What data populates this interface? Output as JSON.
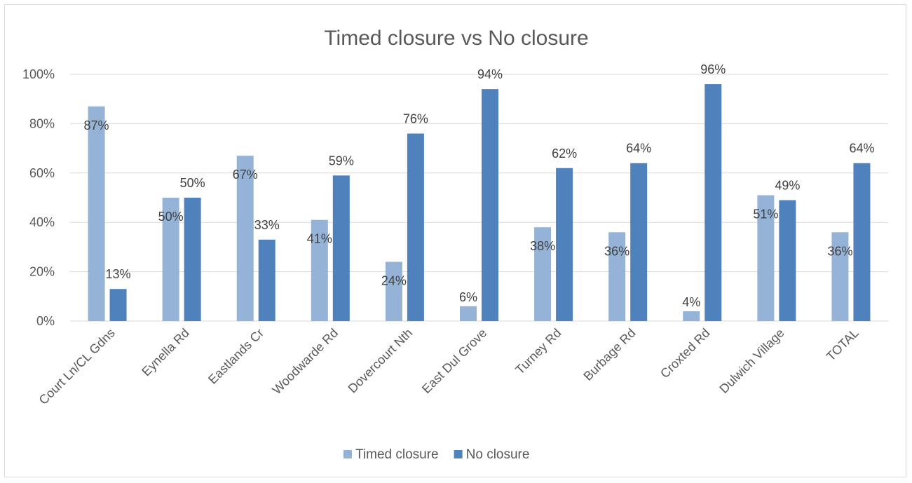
{
  "chart_data": {
    "type": "bar",
    "title": "Timed closure vs No closure",
    "xlabel": "",
    "ylabel": "",
    "ylim": [
      0,
      100
    ],
    "yticks": [
      "0%",
      "20%",
      "40%",
      "60%",
      "80%",
      "100%"
    ],
    "grid": true,
    "legend_position": "bottom",
    "categories": [
      "Court Ln/CL Gdns",
      "Eynella Rd",
      "Eastlands Cr",
      "Woodwarde Rd",
      "Dovercourt Nth",
      "East Dul Grove",
      "Turney Rd",
      "Burbage Rd",
      "Croxted Rd",
      "Dulwich Village",
      "TOTAL"
    ],
    "series": [
      {
        "name": "Timed closure",
        "color": "#95b3d7",
        "values": [
          87,
          50,
          67,
          41,
          24,
          6,
          38,
          36,
          4,
          51,
          36
        ],
        "labels": [
          "87%",
          "50%",
          "67%",
          "41%",
          "24%",
          "6%",
          "38%",
          "36%",
          "4%",
          "51%",
          "36%"
        ]
      },
      {
        "name": "No closure",
        "color": "#4f81bd",
        "values": [
          13,
          50,
          33,
          59,
          76,
          94,
          62,
          64,
          96,
          49,
          64
        ],
        "labels": [
          "13%",
          "50%",
          "33%",
          "59%",
          "76%",
          "94%",
          "62%",
          "64%",
          "96%",
          "49%",
          "64%"
        ]
      }
    ]
  }
}
